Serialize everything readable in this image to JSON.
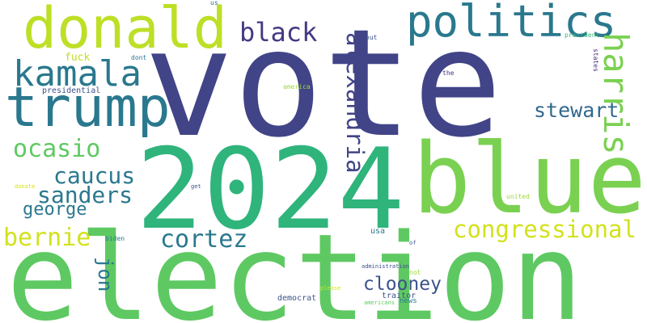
{
  "words": [
    {
      "text": "vote",
      "color": "#414487",
      "vertical": false
    },
    {
      "text": "election",
      "color": "#5ec962",
      "vertical": false
    },
    {
      "text": "2024",
      "color": "#2fb47c",
      "vertical": false
    },
    {
      "text": "blue",
      "color": "#7ad151",
      "vertical": false
    },
    {
      "text": "donald",
      "color": "#bddf26",
      "vertical": false
    },
    {
      "text": "trump",
      "color": "#2a788e",
      "vertical": false
    },
    {
      "text": "politics",
      "color": "#2a788e",
      "vertical": false
    },
    {
      "text": "kamala",
      "color": "#2a788e",
      "vertical": false
    },
    {
      "text": "harris",
      "color": "#7ad151",
      "vertical": true
    },
    {
      "text": "alexandria",
      "color": "#414487",
      "vertical": true
    },
    {
      "text": "black",
      "color": "#443a83",
      "vertical": false
    },
    {
      "text": "ocasio",
      "color": "#5ec962",
      "vertical": false
    },
    {
      "text": "stewart",
      "color": "#31688e",
      "vertical": false
    },
    {
      "text": "caucus",
      "color": "#2a788e",
      "vertical": false
    },
    {
      "text": "sanders",
      "color": "#2a788e",
      "vertical": false
    },
    {
      "text": "george",
      "color": "#2a788e",
      "vertical": false
    },
    {
      "text": "bernie",
      "color": "#d2e21b",
      "vertical": false
    },
    {
      "text": "cortez",
      "color": "#2a788e",
      "vertical": false
    },
    {
      "text": "congressional",
      "color": "#d2e21b",
      "vertical": false
    },
    {
      "text": "clooney",
      "color": "#3b528b",
      "vertical": false
    },
    {
      "text": "jon",
      "color": "#2a788e",
      "vertical": true
    },
    {
      "text": "fuck",
      "color": "#bddf26",
      "vertical": false
    },
    {
      "text": "presidential",
      "color": "#3b528b",
      "vertical": false
    },
    {
      "text": "dont",
      "color": "#2a788e",
      "vertical": false
    },
    {
      "text": "us",
      "color": "#2a788e",
      "vertical": false
    },
    {
      "text": "out",
      "color": "#3b528b",
      "vertical": false
    },
    {
      "text": "president",
      "color": "#35b779",
      "vertical": false
    },
    {
      "text": "states",
      "color": "#482878",
      "vertical": true
    },
    {
      "text": "america",
      "color": "#a0da39",
      "vertical": false
    },
    {
      "text": "the",
      "color": "#46327e",
      "vertical": false
    },
    {
      "text": "donate",
      "color": "#d8e219",
      "vertical": false
    },
    {
      "text": "get",
      "color": "#3b528b",
      "vertical": false
    },
    {
      "text": "united",
      "color": "#a0da39",
      "vertical": false
    },
    {
      "text": "biden",
      "color": "#2a788e",
      "vertical": false
    },
    {
      "text": "usa",
      "color": "#2a788e",
      "vertical": false
    },
    {
      "text": "of",
      "color": "#3b528b",
      "vertical": false
    },
    {
      "text": "administration",
      "color": "#3b528b",
      "vertical": false
    },
    {
      "text": "not",
      "color": "#a0da39",
      "vertical": false
    },
    {
      "text": "democrat",
      "color": "#3b528b",
      "vertical": false
    },
    {
      "text": "please",
      "color": "#d8e219",
      "vertical": false
    },
    {
      "text": "traitor",
      "color": "#3b528b",
      "vertical": false
    },
    {
      "text": "news",
      "color": "#2a788e",
      "vertical": false
    },
    {
      "text": "americans",
      "color": "#5ec962",
      "vertical": false
    }
  ]
}
